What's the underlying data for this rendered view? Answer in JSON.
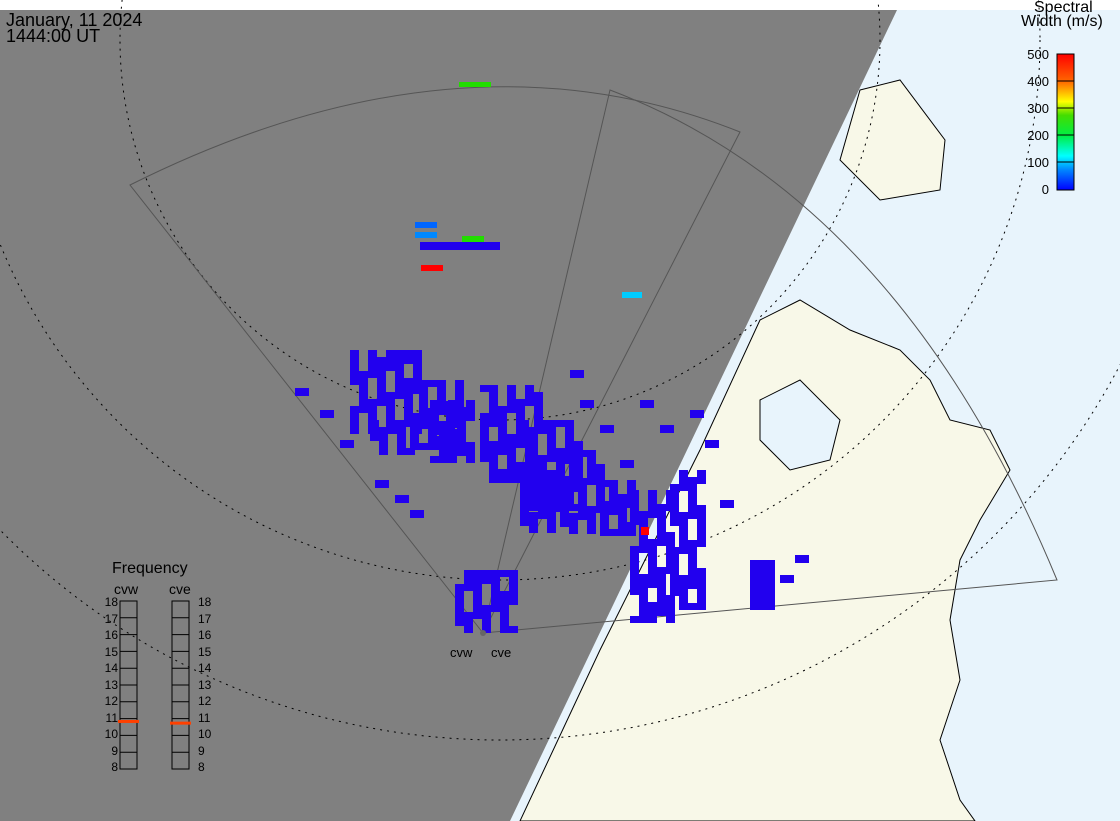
{
  "header": {
    "date": "January, 11 2024",
    "time": "1444:00 UT"
  },
  "colorbar": {
    "title_line1": "Spectral",
    "title_line2": "Width (m/s)",
    "ticks": [
      "500",
      "400",
      "300",
      "200",
      "100",
      "0"
    ],
    "range": [
      0,
      500
    ],
    "colors": [
      "#ff0000",
      "#ff8800",
      "#ffff00",
      "#22dd00",
      "#00ff88",
      "#00ffff",
      "#0088ff",
      "#0000ff"
    ]
  },
  "frequency": {
    "title": "Frequency",
    "ticks": [
      "18",
      "17",
      "16",
      "15",
      "14",
      "13",
      "12",
      "11",
      "10",
      "9",
      "8"
    ],
    "range_mhz": [
      8,
      18
    ],
    "radars": [
      {
        "name": "cvw",
        "value_mhz": 10.8
      },
      {
        "name": "cve",
        "value_mhz": 10.7
      }
    ],
    "marker_color": "#ff4000"
  },
  "map": {
    "site_labels": [
      "cvw",
      "cve"
    ],
    "colors": {
      "ocean": "#e8f4fc",
      "land": "#f8f8e8",
      "night": "#808080",
      "echo": "#2200ee"
    }
  }
}
